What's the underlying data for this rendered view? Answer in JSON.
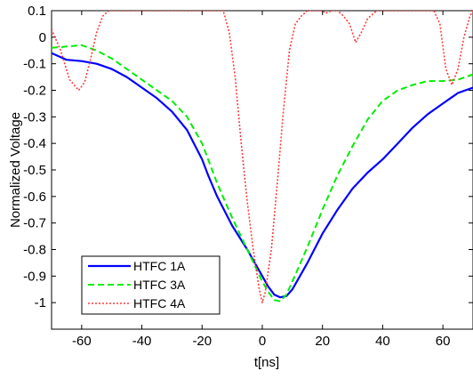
{
  "chart_data": {
    "type": "line",
    "xlabel": "t[ns]",
    "ylabel": "Normalized Voltage",
    "xlim": [
      -70,
      70
    ],
    "ylim": [
      -1.1,
      0.1
    ],
    "xticks": [
      -60,
      -40,
      -20,
      0,
      20,
      40,
      60
    ],
    "yticks": [
      0.1,
      0,
      -0.1,
      -0.2,
      -0.3,
      -0.4,
      -0.5,
      -0.6,
      -0.7,
      -0.8,
      -0.9,
      -1
    ],
    "grid": false,
    "legend_position": "bottom-left",
    "series": [
      {
        "name": "HTFC 1A",
        "color": "#0000ff",
        "style": "solid",
        "x": [
          -70,
          -65,
          -60,
          -55,
          -50,
          -45,
          -40,
          -35,
          -30,
          -25,
          -20,
          -18,
          -15,
          -10,
          -5,
          0,
          2,
          4,
          6,
          8,
          10,
          15,
          20,
          25,
          30,
          35,
          40,
          45,
          50,
          55,
          60,
          65,
          70
        ],
        "y": [
          -0.06,
          -0.085,
          -0.09,
          -0.1,
          -0.12,
          -0.15,
          -0.19,
          -0.23,
          -0.28,
          -0.35,
          -0.46,
          -0.52,
          -0.6,
          -0.71,
          -0.8,
          -0.9,
          -0.94,
          -0.97,
          -0.98,
          -0.975,
          -0.95,
          -0.85,
          -0.74,
          -0.65,
          -0.57,
          -0.51,
          -0.46,
          -0.4,
          -0.34,
          -0.29,
          -0.25,
          -0.21,
          -0.19
        ]
      },
      {
        "name": "HTFC 3A",
        "color": "#00ee00",
        "style": "dashed",
        "x": [
          -70,
          -65,
          -60,
          -55,
          -50,
          -45,
          -40,
          -35,
          -30,
          -25,
          -20,
          -15,
          -10,
          -5,
          0,
          2,
          4,
          6,
          8,
          10,
          15,
          20,
          25,
          30,
          35,
          40,
          45,
          50,
          55,
          60,
          65,
          70
        ],
        "y": [
          -0.04,
          -0.035,
          -0.03,
          -0.05,
          -0.08,
          -0.12,
          -0.16,
          -0.2,
          -0.24,
          -0.3,
          -0.4,
          -0.55,
          -0.68,
          -0.8,
          -0.92,
          -0.96,
          -0.99,
          -0.995,
          -0.97,
          -0.92,
          -0.79,
          -0.65,
          -0.52,
          -0.41,
          -0.31,
          -0.24,
          -0.2,
          -0.18,
          -0.165,
          -0.165,
          -0.16,
          -0.14
        ]
      },
      {
        "name": "HTFC 4A",
        "color": "#ff3b3b",
        "style": "dotted",
        "x": [
          -70,
          -67,
          -64,
          -61,
          -59,
          -57,
          -55,
          -53,
          -51,
          -49,
          -47,
          -45,
          -43,
          -41,
          -40,
          -38,
          -36,
          -34,
          -30,
          -25,
          -20,
          -17,
          -15,
          -13,
          -11,
          -9,
          -7,
          -5,
          -3,
          -1,
          0,
          1,
          3,
          5,
          7,
          9,
          11,
          13,
          15,
          17,
          19,
          20,
          21,
          23,
          25,
          27,
          29,
          31,
          33,
          35,
          37,
          38,
          40,
          43,
          46,
          49,
          52,
          55,
          57,
          59,
          61,
          63,
          65,
          67,
          69,
          70
        ],
        "y": [
          0.03,
          -0.05,
          -0.16,
          -0.2,
          -0.17,
          -0.08,
          0.02,
          0.08,
          0.1,
          0.1,
          0.1,
          0.1,
          0.1,
          0.1,
          0.1,
          0.1,
          0.1,
          0.1,
          0.1,
          0.1,
          0.1,
          0.1,
          0.1,
          0.1,
          0.02,
          -0.15,
          -0.4,
          -0.62,
          -0.8,
          -0.95,
          -1.0,
          -0.96,
          -0.8,
          -0.55,
          -0.28,
          -0.05,
          0.05,
          0.08,
          0.1,
          0.1,
          0.1,
          0.1,
          0.09,
          0.1,
          0.1,
          0.08,
          0.05,
          -0.02,
          0.02,
          0.07,
          0.09,
          0.1,
          0.1,
          0.1,
          0.1,
          0.1,
          0.1,
          0.1,
          0.1,
          0.05,
          -0.12,
          -0.18,
          -0.12,
          0.0,
          0.08,
          0.1
        ]
      }
    ]
  }
}
